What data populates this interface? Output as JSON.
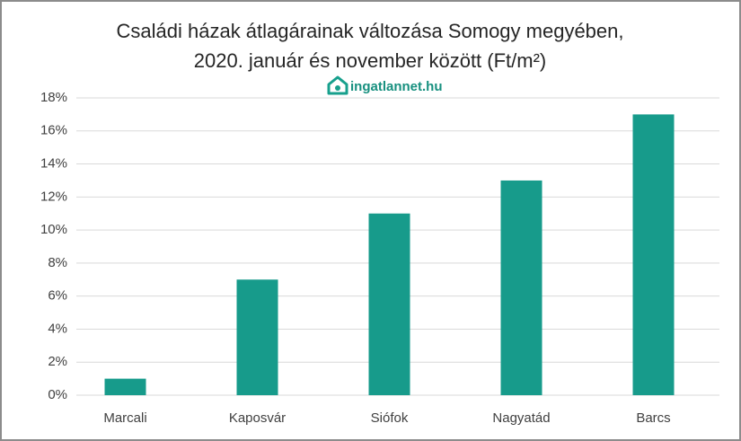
{
  "chart_data": {
    "type": "bar",
    "title": [
      "Családi házak átlagárainak változása Somogy megyében,",
      "2020. január és november között (Ft/m²)"
    ],
    "logo": "ingatlannet.hu",
    "categories": [
      "Marcali",
      "Kaposvár",
      "Siófok",
      "Nagyatád",
      "Barcs"
    ],
    "values": [
      1,
      7,
      11,
      13,
      17
    ],
    "color": "#179b8b",
    "ylim": [
      0,
      18
    ],
    "yticks": [
      {
        "value": 0,
        "label": "0%"
      },
      {
        "value": 2,
        "label": "2%"
      },
      {
        "value": 4,
        "label": "4%"
      },
      {
        "value": 6,
        "label": "6%"
      },
      {
        "value": 8,
        "label": "8%"
      },
      {
        "value": 10,
        "label": "10%"
      },
      {
        "value": 12,
        "label": "12%"
      },
      {
        "value": 14,
        "label": "14%"
      },
      {
        "value": 16,
        "label": "16%"
      },
      {
        "value": 18,
        "label": "18%"
      }
    ],
    "grid": true
  }
}
